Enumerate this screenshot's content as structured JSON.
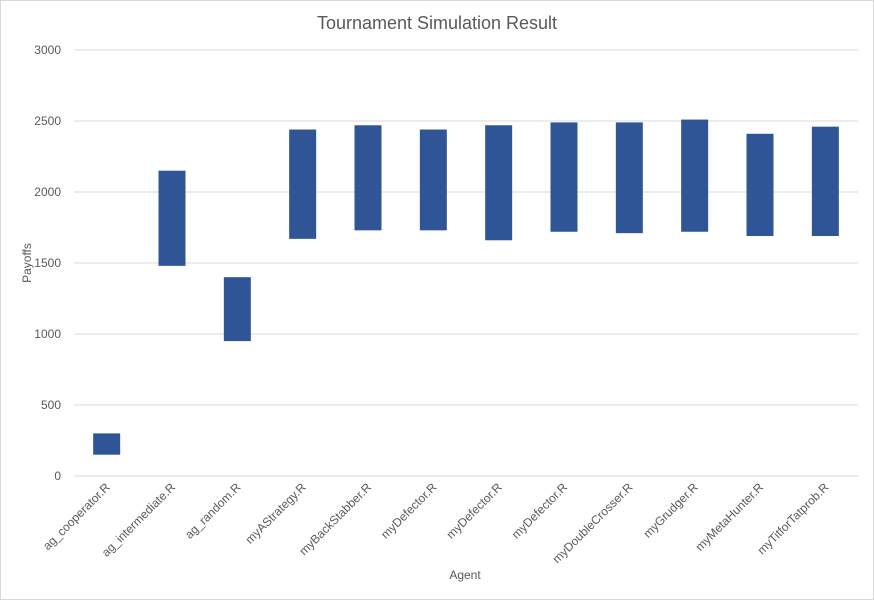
{
  "chart_data": {
    "type": "bar",
    "subtype": "floating-range",
    "title": "Tournament Simulation Result",
    "xlabel": "Agent",
    "ylabel": "Payoffs",
    "ylim": [
      0,
      3000
    ],
    "yticks": [
      0,
      500,
      1000,
      1500,
      2000,
      2500,
      3000
    ],
    "grid": true,
    "legend": "none",
    "bar_color": "#2F5597",
    "categories": [
      "ag_cooperator.R",
      "ag_intermediate.R",
      "ag_random.R",
      "myAStrategy.R",
      "myBackStabber.R",
      "myDefector.R",
      "myDefector.R",
      "myDefector.R",
      "myDoubleCrosser.R",
      "myGrudger.R",
      "myMetaHunter.R",
      "myTitforTatprob.R"
    ],
    "series": [
      {
        "low": [
          150,
          1480,
          950,
          1670,
          1730,
          1730,
          1660,
          1720,
          1710,
          1720,
          1690,
          1690
        ],
        "high": [
          300,
          2150,
          1400,
          2440,
          2470,
          2440,
          2470,
          2490,
          2490,
          2510,
          2410,
          2460
        ]
      }
    ]
  }
}
